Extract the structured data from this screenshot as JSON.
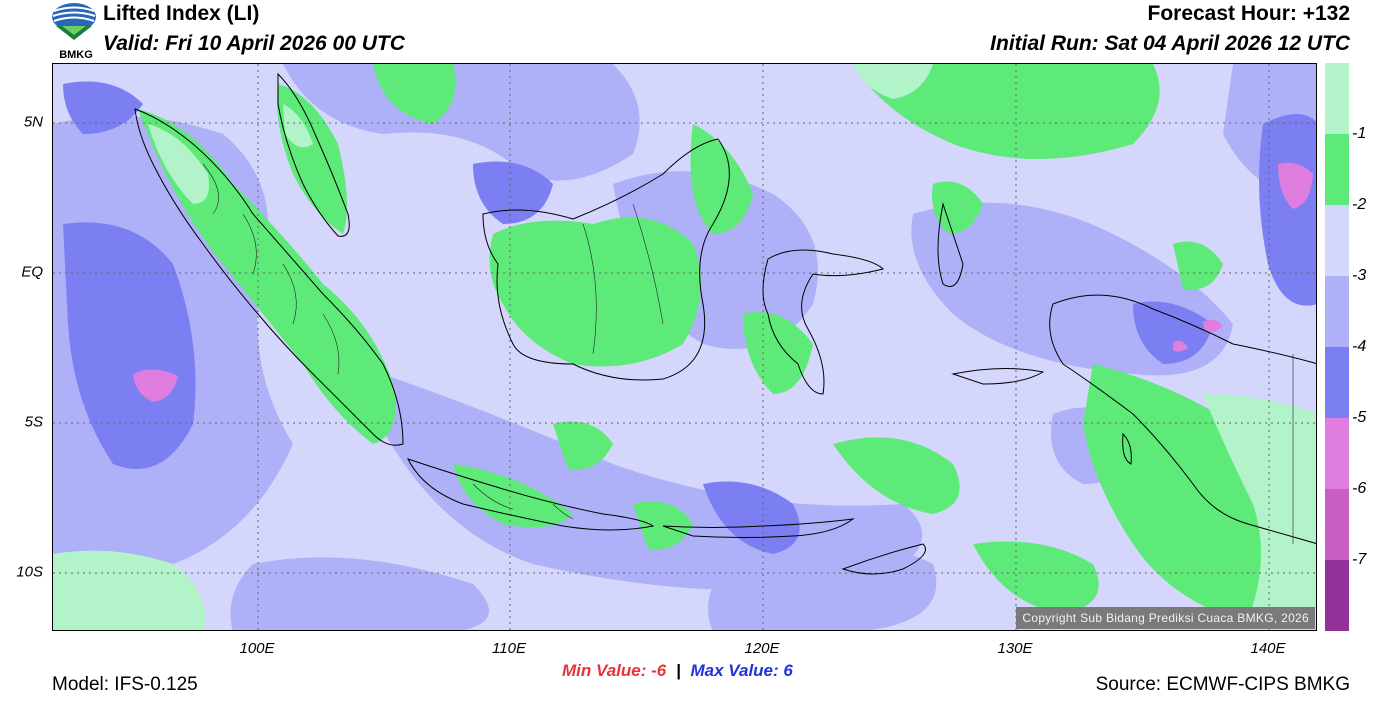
{
  "header": {
    "title": "Lifted Index (LI)",
    "valid": "Valid: Fri 10 April 2026 00 UTC",
    "forecast_hour": "Forecast Hour: +132",
    "initial_run": "Initial Run: Sat 04 April 2026 12 UTC",
    "logo_text": "BMKG"
  },
  "map": {
    "lat_labels": [
      "5N",
      "EQ",
      "5S",
      "10S"
    ],
    "lon_labels": [
      "100E",
      "110E",
      "120E",
      "130E",
      "140E"
    ],
    "copyright": "Copyright Sub Bidang Prediksi Cuaca BMKG, 2026",
    "colors": {
      "lt_-1": "#b3f3c9",
      "-2_-1": "#5dea79",
      "-3_-2": "#d4d6fb",
      "-4_-3": "#aeb0f8",
      "-5_-4": "#7b7ff2",
      "-6_-5": "#e07ee0",
      "-7_-6": "#c95dc2",
      "lt_-7": "#943198"
    }
  },
  "legend": {
    "labels": [
      "-1",
      "-2",
      "-3",
      "-4",
      "-5",
      "-6",
      "-7"
    ]
  },
  "footer": {
    "min_label": "Min Value:",
    "min_value": "-6",
    "separator": "|",
    "max_label": "Max Value:",
    "max_value": "6",
    "model": "Model: IFS-0.125",
    "source": "Source: ECMWF-CIPS BMKG"
  }
}
